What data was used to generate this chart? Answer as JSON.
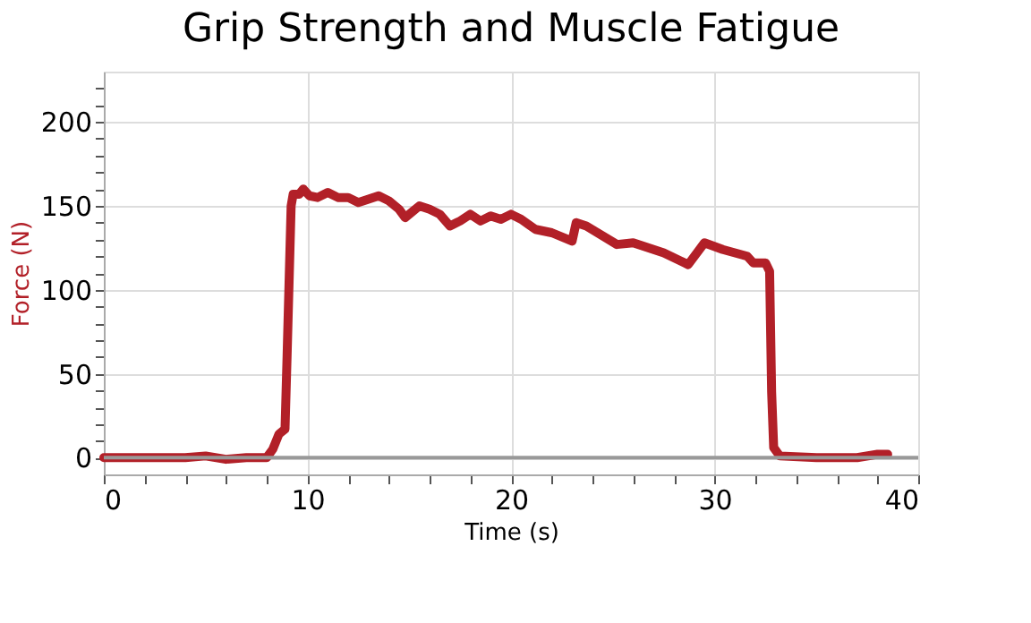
{
  "chart_data": {
    "type": "line",
    "title": "Grip Strength and Muscle Fatigue",
    "xlabel": "Time (s)",
    "ylabel": "Force (N)",
    "xlim": [
      0,
      40
    ],
    "ylim": [
      -10,
      230
    ],
    "xticks": [
      0,
      {
        "value": 2,
        "label": null
      },
      {
        "value": 4,
        "label": null
      },
      {
        "value": 6,
        "label": null
      },
      {
        "value": 8,
        "label": null
      },
      10,
      {
        "value": 12,
        "label": null
      },
      {
        "value": 14,
        "label": null
      },
      {
        "value": 16,
        "label": null
      },
      {
        "value": 18,
        "label": null
      },
      20,
      {
        "value": 22,
        "label": null
      },
      {
        "value": 24,
        "label": null
      },
      {
        "value": 26,
        "label": null
      },
      {
        "value": 28,
        "label": null
      },
      30,
      {
        "value": 32,
        "label": null
      },
      {
        "value": 34,
        "label": null
      },
      {
        "value": 36,
        "label": null
      },
      {
        "value": 38,
        "label": null
      },
      40
    ],
    "yticks": [
      0,
      {
        "value": 10,
        "label": null
      },
      {
        "value": 20,
        "label": null
      },
      {
        "value": 30,
        "label": null
      },
      {
        "value": 40,
        "label": null
      },
      50,
      {
        "value": 60,
        "label": null
      },
      {
        "value": 70,
        "label": null
      },
      {
        "value": 80,
        "label": null
      },
      {
        "value": 90,
        "label": null
      },
      100,
      {
        "value": 110,
        "label": null
      },
      {
        "value": 120,
        "label": null
      },
      {
        "value": 130,
        "label": null
      },
      {
        "value": 140,
        "label": null
      },
      150,
      {
        "value": 160,
        "label": null
      },
      {
        "value": 170,
        "label": null
      },
      {
        "value": 180,
        "label": null
      },
      {
        "value": 190,
        "label": null
      },
      200,
      {
        "value": 210,
        "label": null
      },
      {
        "value": 220,
        "label": null
      }
    ],
    "grid": true,
    "legend": false,
    "marker": "none",
    "line_style": "solid",
    "ref_lines": [
      {
        "axis": "y",
        "value": 0,
        "color": "#999999"
      }
    ],
    "series": [
      {
        "color": "#b22028",
        "x": [
          0,
          2,
          4,
          5,
          6,
          7,
          8,
          8.3,
          8.6,
          8.9,
          9.0,
          9.2,
          9.3,
          9.6,
          9.8,
          10.1,
          10.5,
          11,
          11.5,
          12,
          12.5,
          13,
          13.5,
          14,
          14.5,
          14.8,
          15.2,
          15.5,
          16,
          16.5,
          17,
          17.5,
          18,
          18.5,
          19,
          19.5,
          20,
          20.5,
          21.2,
          22.0,
          23.0,
          23.2,
          23.7,
          25.2,
          26.0,
          27.5,
          28.7,
          29.5,
          30.4,
          31.6,
          31.9,
          32.5,
          32.7,
          32.8,
          32.9,
          33.2,
          35,
          37,
          38,
          38.5
        ],
        "values": [
          0,
          0,
          0,
          1,
          -1,
          0,
          0,
          5,
          14,
          17,
          60,
          150,
          157,
          157,
          160,
          156,
          155,
          158,
          155,
          155,
          152,
          154,
          156,
          153,
          148,
          143,
          147,
          150,
          148,
          145,
          138,
          141,
          145,
          141,
          144,
          142,
          145,
          142,
          136,
          134,
          129,
          140,
          138,
          127,
          128,
          122,
          115,
          128,
          124,
          120,
          116,
          116,
          111,
          39,
          6,
          1,
          0,
          0,
          2,
          2
        ]
      }
    ]
  }
}
